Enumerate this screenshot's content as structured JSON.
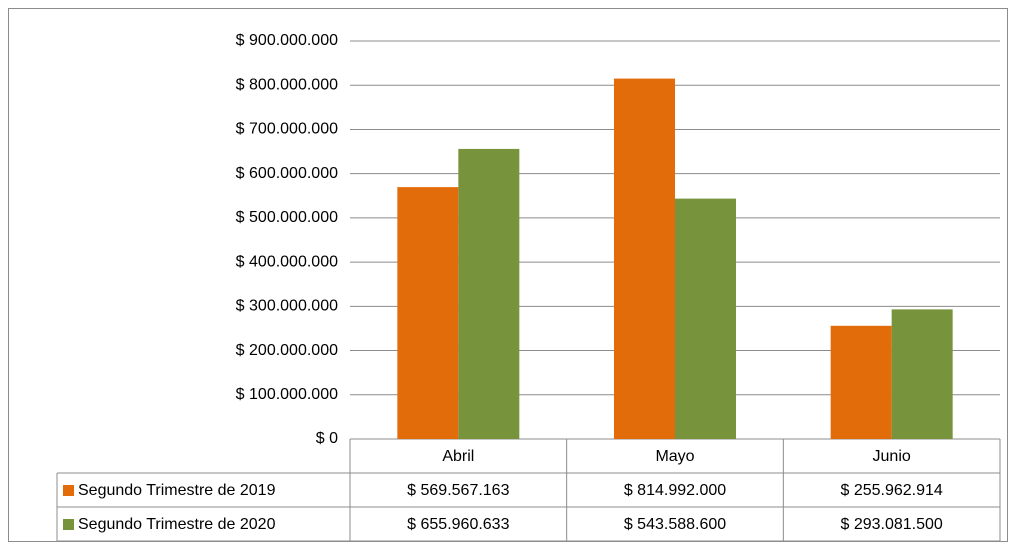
{
  "chart_data": {
    "type": "bar",
    "categories": [
      "Abril",
      "Mayo",
      "Junio"
    ],
    "series": [
      {
        "name": "Segundo Trimestre de 2019",
        "color": "#e36c0a",
        "values": [
          569567163,
          814992000,
          255962914
        ],
        "value_labels": [
          "$ 569.567.163",
          "$ 814.992.000",
          "$ 255.962.914"
        ]
      },
      {
        "name": "Segundo Trimestre de 2020",
        "color": "#77933c",
        "values": [
          655960633,
          543588600,
          293081500
        ],
        "value_labels": [
          "$ 655.960.633",
          "$ 543.588.600",
          "$ 293.081.500"
        ]
      }
    ],
    "ylim": [
      0,
      900000000
    ],
    "yticks": [
      {
        "value": 0,
        "label": "$ 0"
      },
      {
        "value": 100000000,
        "label": "$ 100.000.000"
      },
      {
        "value": 200000000,
        "label": "$ 200.000.000"
      },
      {
        "value": 300000000,
        "label": "$ 300.000.000"
      },
      {
        "value": 400000000,
        "label": "$ 400.000.000"
      },
      {
        "value": 500000000,
        "label": "$ 500.000.000"
      },
      {
        "value": 600000000,
        "label": "$ 600.000.000"
      },
      {
        "value": 700000000,
        "label": "$ 700.000.000"
      },
      {
        "value": 800000000,
        "label": "$ 800.000.000"
      },
      {
        "value": 900000000,
        "label": "$ 900.000.000"
      }
    ],
    "grid": true,
    "legend": "table"
  }
}
